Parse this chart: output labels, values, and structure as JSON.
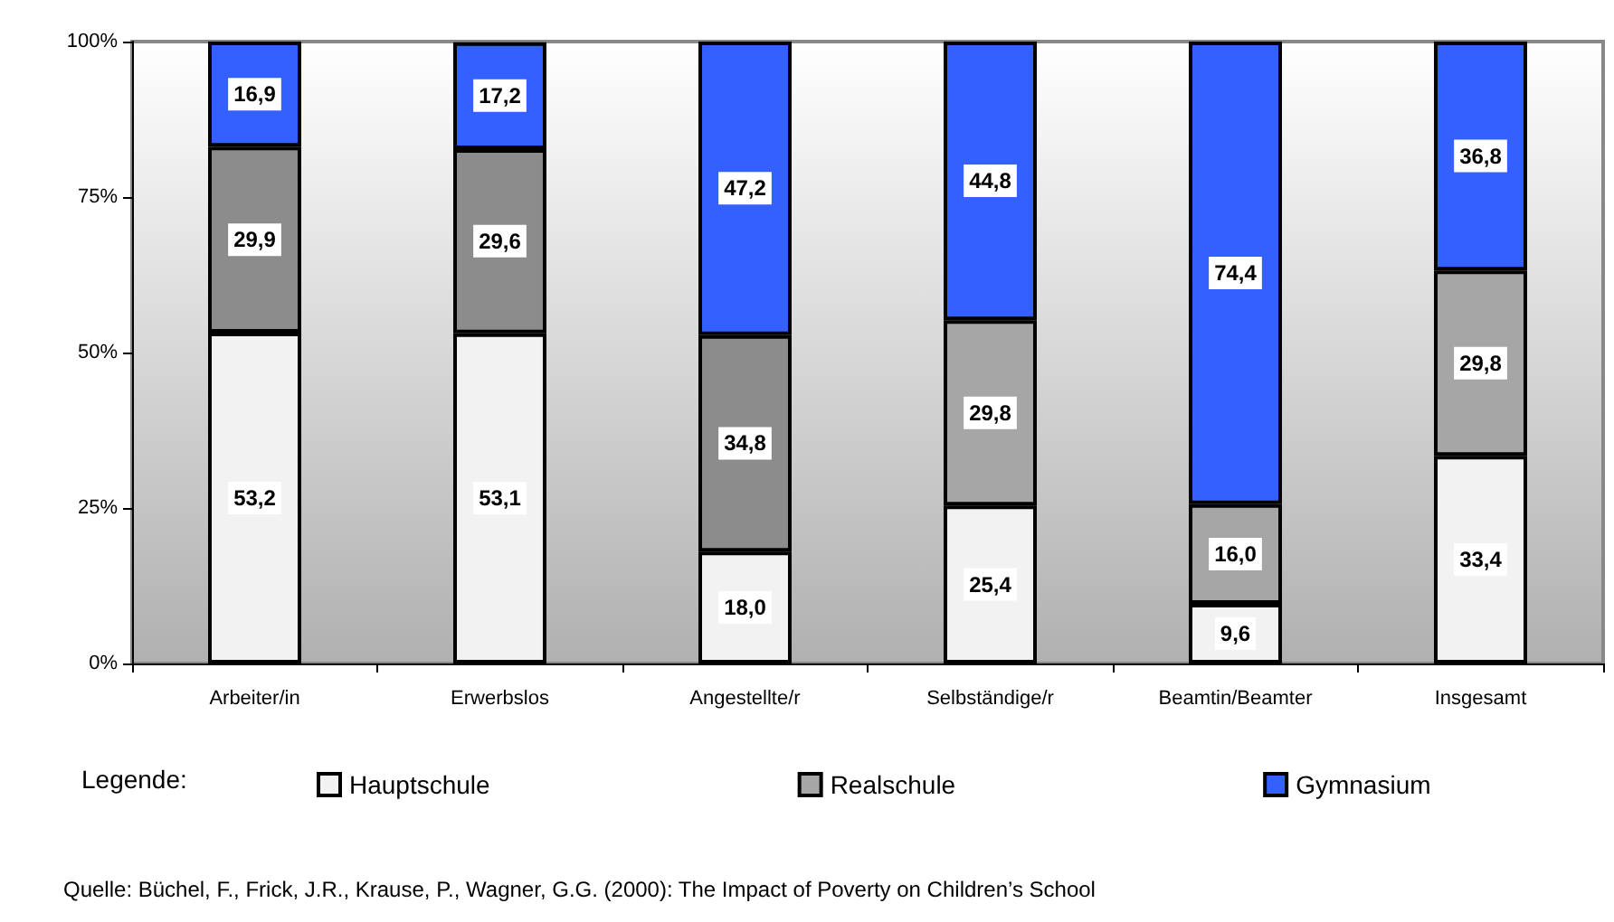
{
  "chart_data": {
    "type": "bar",
    "stacked": true,
    "categories": [
      "Arbeiter/in",
      "Erwerbslos",
      "Angestellte/r",
      "Selbständige/r",
      "Beamtin/Beamter",
      "Insgesamt"
    ],
    "series": [
      {
        "name": "Hauptschule",
        "color": "#f2f2f2",
        "values": [
          53.2,
          53.1,
          18.0,
          25.4,
          9.6,
          33.4
        ],
        "value_labels": [
          "53,2",
          "53,1",
          "18,0",
          "25,4",
          "9,6",
          "33,4"
        ]
      },
      {
        "name": "Realschule",
        "color": "#a6a6a6",
        "colors": [
          "#8c8c8c",
          "#8c8c8c",
          "#8c8c8c",
          "#a6a6a6",
          "#a6a6a6",
          "#a6a6a6"
        ],
        "values": [
          29.9,
          29.6,
          34.8,
          29.8,
          16.0,
          29.8
        ],
        "value_labels": [
          "29,9",
          "29,6",
          "34,8",
          "29,8",
          "16,0",
          "29,8"
        ]
      },
      {
        "name": "Gymnasium",
        "color": "#3360ff",
        "values": [
          16.9,
          17.2,
          47.2,
          44.8,
          74.4,
          36.8
        ],
        "value_labels": [
          "16,9",
          "17,2",
          "47,2",
          "44,8",
          "74,4",
          "36,8"
        ]
      }
    ],
    "ylim": [
      0,
      100
    ],
    "yticks": [
      {
        "value": 0,
        "label": "0%"
      },
      {
        "value": 25,
        "label": "25%"
      },
      {
        "value": 50,
        "label": "50%"
      },
      {
        "value": 75,
        "label": "75%"
      },
      {
        "value": 100,
        "label": "100%"
      }
    ],
    "grid": false,
    "legend": "bottom",
    "legend_title": "Legende:",
    "annotations": [
      "Quelle: Büchel, F., Frick, J.R., Krause, P., Wagner, G.G. (2000): The Impact of Poverty on Children’s School"
    ]
  }
}
